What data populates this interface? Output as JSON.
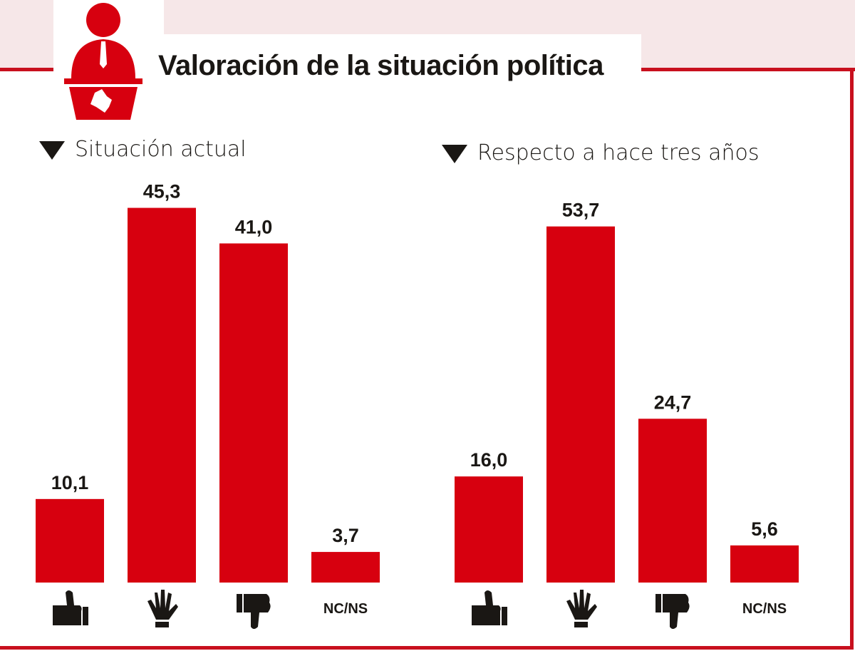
{
  "title": "Valoración de la situación política",
  "colors": {
    "bar": "#d7000f",
    "accent": "#c8101e",
    "band": "#f6e7e8",
    "text": "#1a1714"
  },
  "icons": {
    "header": "speaker-at-podium-icon"
  },
  "chart_data": [
    {
      "type": "bar",
      "title": "Situación actual",
      "categories": [
        "thumbs-up-icon",
        "waving-hand-icon",
        "thumbs-down-icon",
        "NC/NS"
      ],
      "values": [
        10.1,
        45.3,
        41.0,
        3.7
      ],
      "labels": [
        "10,1",
        "45,3",
        "41,0",
        "3,7"
      ]
    },
    {
      "type": "bar",
      "title": "Respecto a hace tres años",
      "categories": [
        "thumbs-up-icon",
        "waving-hand-icon",
        "thumbs-down-icon",
        "NC/NS"
      ],
      "values": [
        16.0,
        53.7,
        24.7,
        5.6
      ],
      "labels": [
        "16,0",
        "53,7",
        "24,7",
        "5,6"
      ]
    }
  ]
}
